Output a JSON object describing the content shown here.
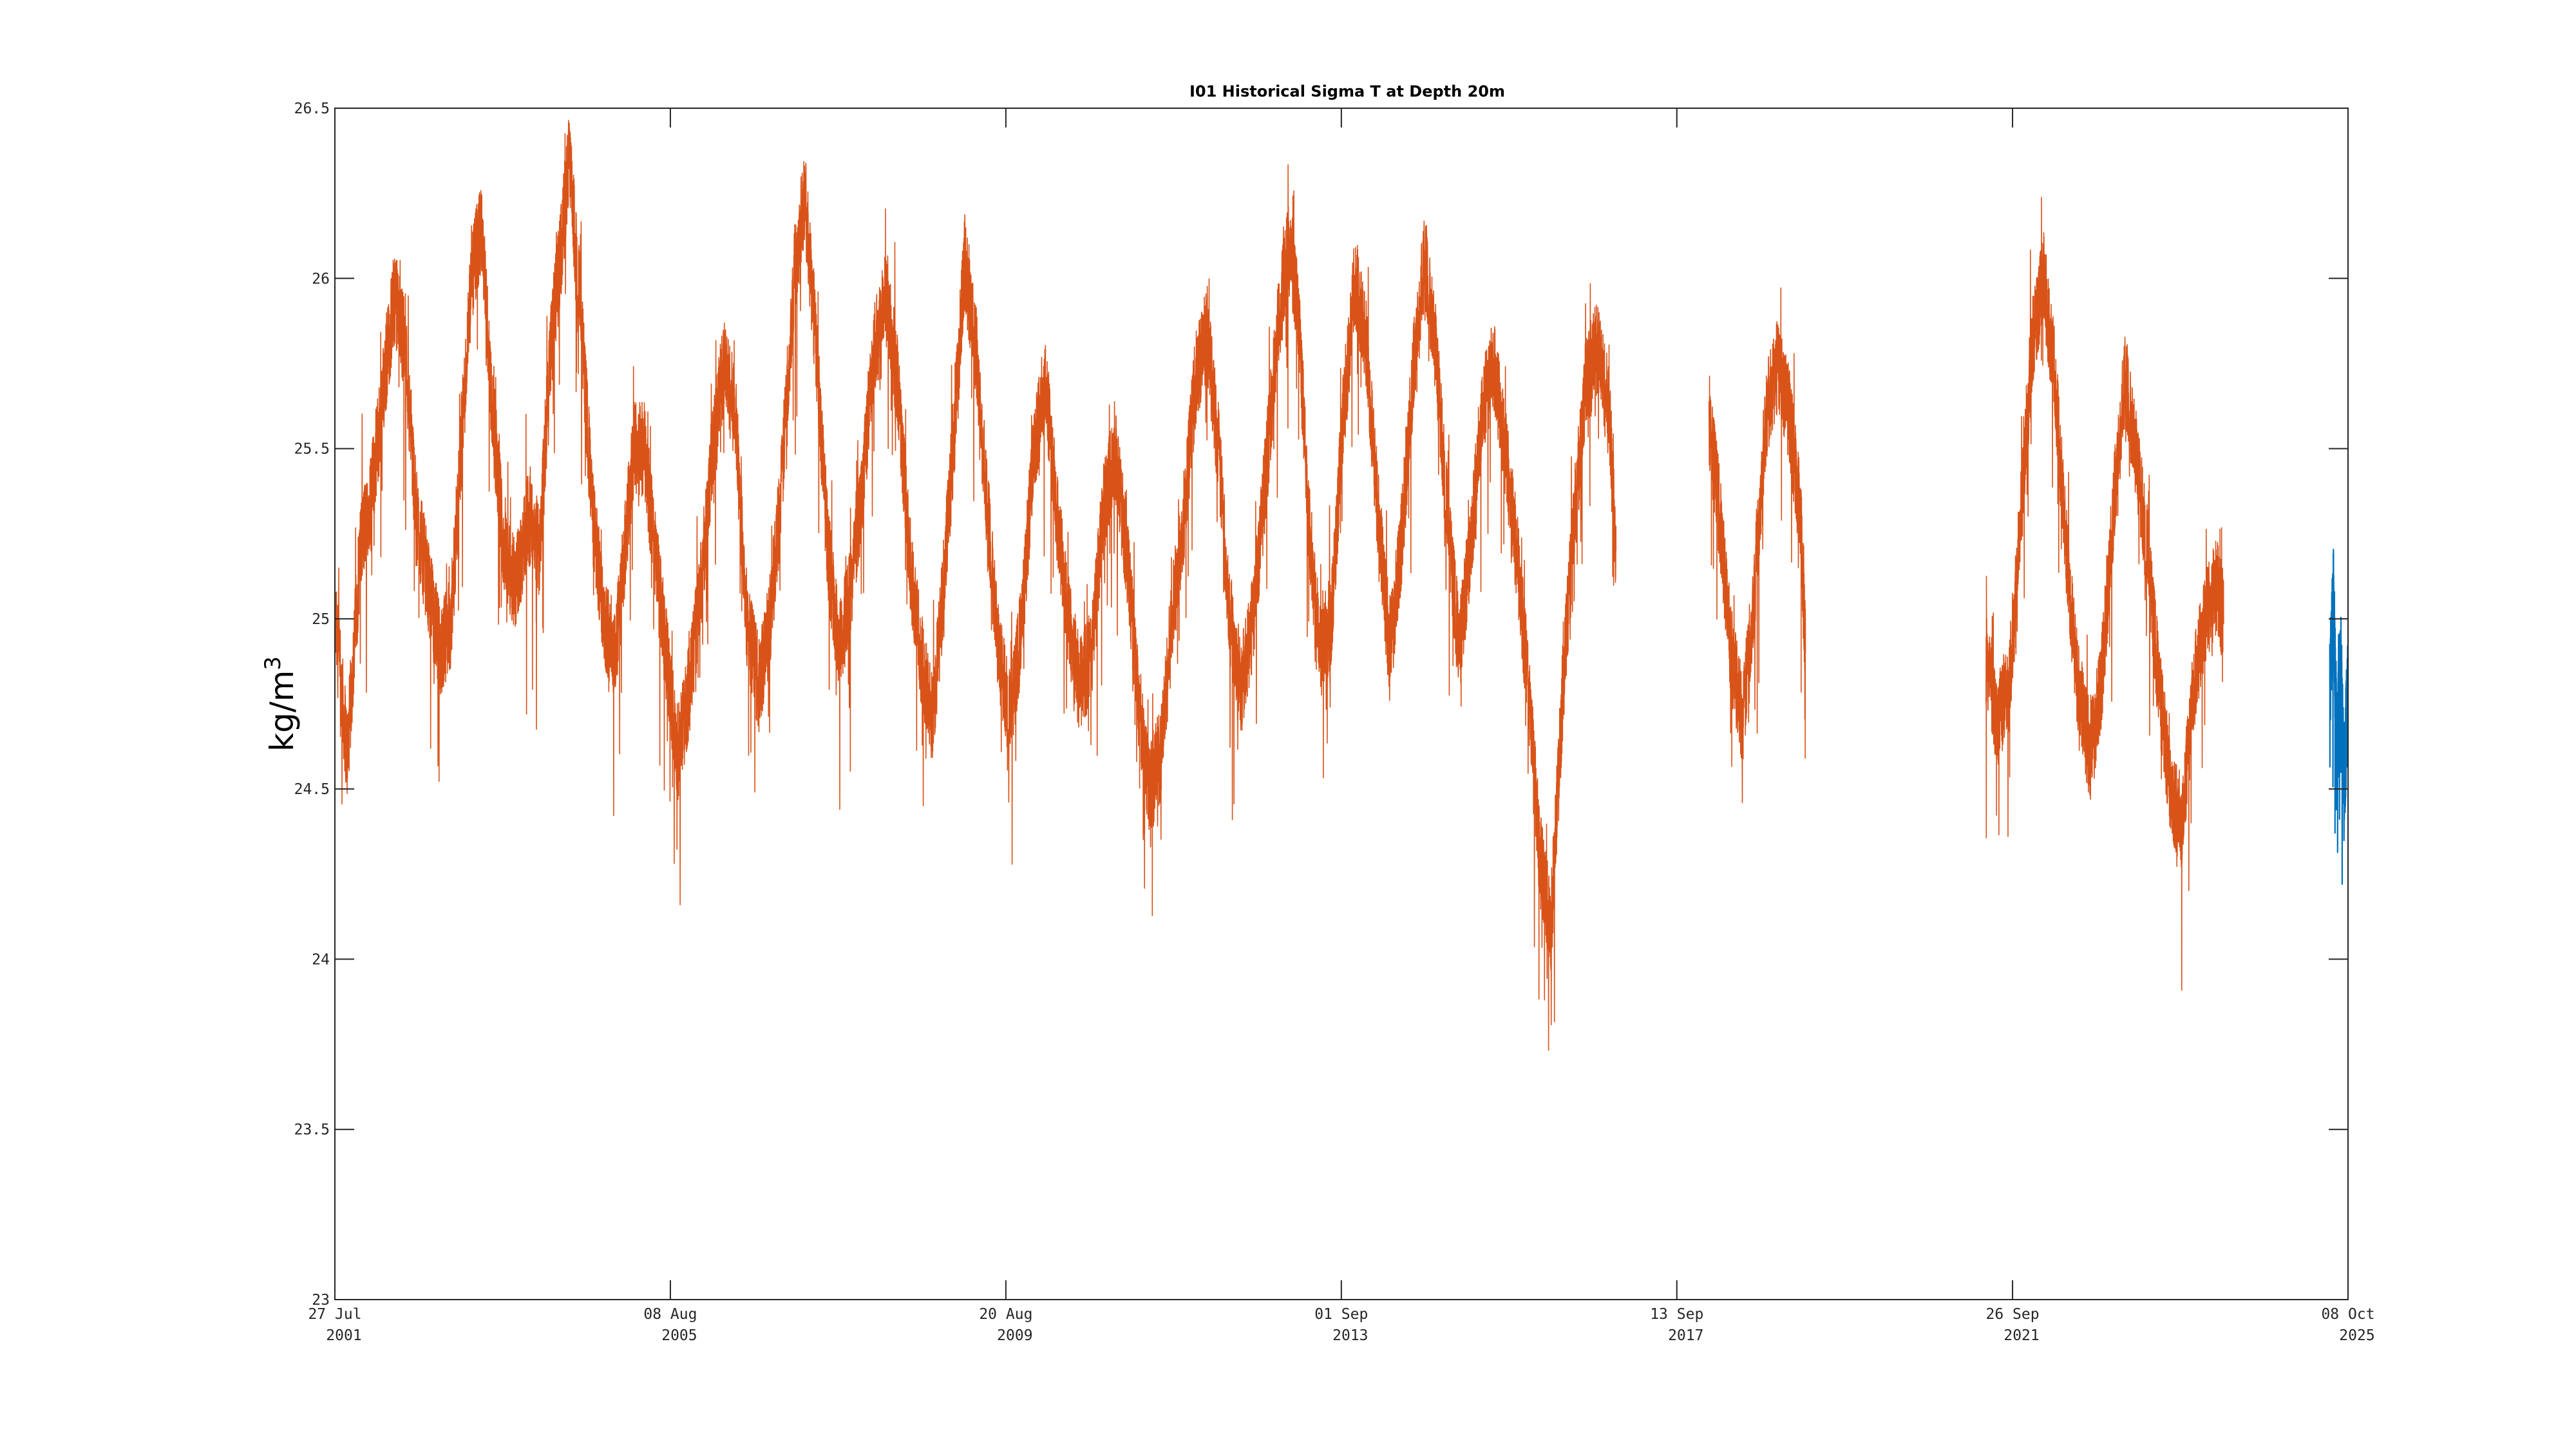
{
  "chart_data": {
    "type": "line",
    "title": "I01 Historical Sigma T at Depth 20m",
    "ylabel": "kg/m",
    "ylabel_superscript": "3",
    "xlabel": "",
    "ylim": [
      23,
      26.5
    ],
    "xlim": [
      "2001-07-27",
      "2025-10-08"
    ],
    "grid": false,
    "y_ticks": [
      "23",
      "23.5",
      "24",
      "24.5",
      "25",
      "25.5",
      "26",
      "26.5"
    ],
    "x_ticks": [
      {
        "date": "2001-07-27",
        "line1": "27 Jul",
        "line2": "2001"
      },
      {
        "date": "2005-08-08",
        "line1": "08 Aug",
        "line2": "2005"
      },
      {
        "date": "2009-08-20",
        "line1": "20 Aug",
        "line2": "2009"
      },
      {
        "date": "2013-09-01",
        "line1": "01 Sep",
        "line2": "2013"
      },
      {
        "date": "2017-09-13",
        "line1": "13 Sep",
        "line2": "2017"
      },
      {
        "date": "2021-09-26",
        "line1": "26 Sep",
        "line2": "2021"
      },
      {
        "date": "2025-10-08",
        "line1": "08 Oct",
        "line2": "2025"
      }
    ],
    "series": [
      {
        "color": "#D95319",
        "segments": [
          [
            [
              "2001-07-27",
              25.0
            ],
            [
              "2001-09-20",
              24.6
            ],
            [
              "2001-11-15",
              25.2
            ],
            [
              "2002-01-10",
              25.4
            ],
            [
              "2002-03-01",
              25.7
            ],
            [
              "2002-04-15",
              25.95
            ],
            [
              "2002-06-01",
              25.8
            ],
            [
              "2002-07-20",
              25.3
            ],
            [
              "2002-09-10",
              25.1
            ],
            [
              "2002-11-01",
              24.9
            ],
            [
              "2002-12-20",
              25.0
            ],
            [
              "2003-02-01",
              25.5
            ],
            [
              "2003-03-20",
              26.0
            ],
            [
              "2003-05-01",
              26.15
            ],
            [
              "2003-06-20",
              25.6
            ],
            [
              "2003-08-10",
              25.2
            ],
            [
              "2003-10-01",
              25.1
            ],
            [
              "2003-11-20",
              25.3
            ],
            [
              "2004-01-10",
              25.2
            ],
            [
              "2004-03-01",
              25.8
            ],
            [
              "2004-04-10",
              26.05
            ],
            [
              "2004-05-20",
              26.35
            ],
            [
              "2004-07-10",
              25.9
            ],
            [
              "2004-09-01",
              25.3
            ],
            [
              "2004-10-20",
              25.0
            ],
            [
              "2004-12-10",
              24.9
            ],
            [
              "2005-01-20",
              25.2
            ],
            [
              "2005-03-01",
              25.5
            ],
            [
              "2005-04-15",
              25.5
            ],
            [
              "2005-06-01",
              25.2
            ],
            [
              "2005-07-20",
              24.9
            ],
            [
              "2005-09-10",
              24.6
            ],
            [
              "2005-11-01",
              24.8
            ],
            [
              "2005-12-20",
              25.1
            ],
            [
              "2006-02-10",
              25.5
            ],
            [
              "2006-04-01",
              25.75
            ],
            [
              "2006-05-20",
              25.6
            ],
            [
              "2006-07-10",
              25.0
            ],
            [
              "2006-09-01",
              24.8
            ],
            [
              "2006-10-20",
              25.0
            ],
            [
              "2006-12-10",
              25.4
            ],
            [
              "2007-02-01",
              26.0
            ],
            [
              "2007-03-20",
              26.25
            ],
            [
              "2007-05-10",
              25.8
            ],
            [
              "2007-07-01",
              25.2
            ],
            [
              "2007-08-20",
              24.9
            ],
            [
              "2007-10-10",
              25.1
            ],
            [
              "2007-12-01",
              25.4
            ],
            [
              "2008-01-20",
              25.8
            ],
            [
              "2008-03-10",
              25.95
            ],
            [
              "2008-05-01",
              25.7
            ],
            [
              "2008-06-20",
              25.2
            ],
            [
              "2008-08-10",
              24.9
            ],
            [
              "2008-10-01",
              24.7
            ],
            [
              "2008-11-20",
              25.1
            ],
            [
              "2009-01-10",
              25.6
            ],
            [
              "2009-02-20",
              26.05
            ],
            [
              "2009-04-10",
              25.8
            ],
            [
              "2009-06-01",
              25.3
            ],
            [
              "2009-07-20",
              24.9
            ],
            [
              "2009-09-10",
              24.7
            ],
            [
              "2009-11-01",
              25.0
            ],
            [
              "2009-12-20",
              25.5
            ],
            [
              "2010-02-10",
              25.7
            ],
            [
              "2010-04-01",
              25.3
            ],
            [
              "2010-05-20",
              25.0
            ],
            [
              "2010-07-10",
              24.8
            ],
            [
              "2010-09-01",
              24.9
            ],
            [
              "2010-10-20",
              25.3
            ],
            [
              "2010-12-10",
              25.5
            ],
            [
              "2011-02-01",
              25.2
            ],
            [
              "2011-03-20",
              24.8
            ],
            [
              "2011-05-10",
              24.5
            ],
            [
              "2011-07-01",
              24.6
            ],
            [
              "2011-08-20",
              25.0
            ],
            [
              "2011-10-10",
              25.3
            ],
            [
              "2011-12-01",
              25.7
            ],
            [
              "2012-01-20",
              25.85
            ],
            [
              "2012-03-10",
              25.5
            ],
            [
              "2012-05-01",
              25.0
            ],
            [
              "2012-06-20",
              24.8
            ],
            [
              "2012-08-10",
              25.0
            ],
            [
              "2012-10-01",
              25.4
            ],
            [
              "2012-11-20",
              25.8
            ],
            [
              "2013-01-10",
              26.1
            ],
            [
              "2013-02-20",
              25.95
            ],
            [
              "2013-04-10",
              25.3
            ],
            [
              "2013-06-01",
              24.9
            ],
            [
              "2013-07-20",
              25.0
            ],
            [
              "2013-09-10",
              25.6
            ],
            [
              "2013-11-01",
              26.0
            ],
            [
              "2013-12-20",
              25.8
            ],
            [
              "2014-02-10",
              25.3
            ],
            [
              "2014-04-01",
              24.9
            ],
            [
              "2014-05-20",
              25.2
            ],
            [
              "2014-07-10",
              25.7
            ],
            [
              "2014-09-01",
              26.05
            ],
            [
              "2014-10-20",
              25.8
            ],
            [
              "2014-12-10",
              25.3
            ],
            [
              "2015-02-01",
              24.9
            ],
            [
              "2015-03-20",
              25.2
            ],
            [
              "2015-05-10",
              25.6
            ],
            [
              "2015-07-01",
              25.75
            ],
            [
              "2015-08-20",
              25.5
            ],
            [
              "2015-10-10",
              25.2
            ],
            [
              "2015-12-01",
              24.8
            ],
            [
              "2016-01-20",
              24.3
            ],
            [
              "2016-03-10",
              24.1
            ],
            [
              "2016-05-01",
              24.8
            ],
            [
              "2016-06-20",
              25.3
            ],
            [
              "2016-08-10",
              25.7
            ],
            [
              "2016-10-01",
              25.8
            ],
            [
              "2016-11-20",
              25.6
            ],
            [
              "2016-12-20",
              25.2
            ]
          ],
          [
            [
              "2018-02-01",
              25.6
            ],
            [
              "2018-03-20",
              25.3
            ],
            [
              "2018-05-10",
              24.9
            ],
            [
              "2018-07-01",
              24.7
            ],
            [
              "2018-08-20",
              25.1
            ],
            [
              "2018-10-10",
              25.6
            ],
            [
              "2018-12-01",
              25.75
            ],
            [
              "2019-01-20",
              25.6
            ],
            [
              "2019-03-10",
              25.3
            ],
            [
              "2019-04-01",
              24.9
            ]
          ],
          [
            [
              "2021-06-01",
              24.9
            ],
            [
              "2021-07-20",
              24.7
            ],
            [
              "2021-09-10",
              24.8
            ],
            [
              "2021-11-01",
              25.3
            ],
            [
              "2021-12-20",
              25.8
            ],
            [
              "2022-02-10",
              26.0
            ],
            [
              "2022-04-01",
              25.7
            ],
            [
              "2022-05-20",
              25.2
            ],
            [
              "2022-07-10",
              24.8
            ],
            [
              "2022-09-01",
              24.6
            ],
            [
              "2022-10-20",
              24.8
            ],
            [
              "2022-12-10",
              25.3
            ],
            [
              "2023-02-01",
              25.7
            ],
            [
              "2023-03-20",
              25.5
            ],
            [
              "2023-05-10",
              25.2
            ],
            [
              "2023-07-01",
              24.8
            ],
            [
              "2023-08-20",
              24.5
            ],
            [
              "2023-10-10",
              24.4
            ],
            [
              "2023-12-01",
              24.8
            ],
            [
              "2024-01-20",
              25.0
            ],
            [
              "2024-03-10",
              25.1
            ],
            [
              "2024-04-10",
              25.0
            ]
          ]
        ]
      },
      {
        "color": "#0072BD",
        "segments": [
          [
            [
              "2025-07-20",
              24.8
            ],
            [
              "2025-08-05",
              25.05
            ],
            [
              "2025-08-20",
              24.6
            ],
            [
              "2025-09-05",
              24.9
            ],
            [
              "2025-09-20",
              24.5
            ],
            [
              "2025-10-08",
              24.8
            ]
          ]
        ]
      }
    ]
  }
}
